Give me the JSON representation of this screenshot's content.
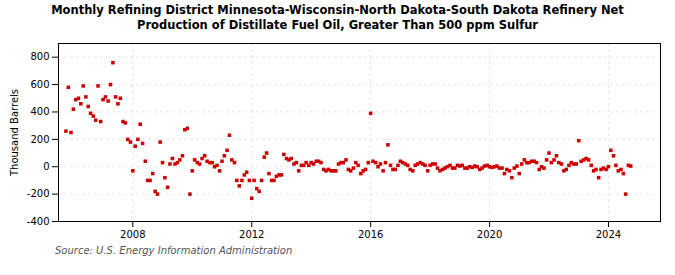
{
  "chart_data": {
    "type": "scatter",
    "title": "Monthly Refining District Minnesota-Wisconsin-North Dakota-South Dakota Refinery Net\nProduction of Distillate Fuel Oil, Greater Than 500 ppm Sulfur",
    "ylabel": "Thousand Barrels",
    "source": "Source: U.S. Energy Information Administration",
    "color": "#cc0000",
    "marker": "square",
    "grid": true,
    "xlim": [
      2005.5,
      2025.75
    ],
    "xticks": [
      2008,
      2012,
      2016,
      2020,
      2024
    ],
    "ylim": [
      -400,
      900
    ],
    "yticks": [
      -400,
      -200,
      0,
      200,
      400,
      600,
      800
    ],
    "x": [
      2005.75,
      2005.83,
      2005.92,
      2006.0,
      2006.08,
      2006.17,
      2006.25,
      2006.33,
      2006.42,
      2006.5,
      2006.58,
      2006.67,
      2006.75,
      2006.83,
      2006.92,
      2007.0,
      2007.08,
      2007.17,
      2007.25,
      2007.33,
      2007.42,
      2007.5,
      2007.58,
      2007.67,
      2007.75,
      2007.83,
      2007.92,
      2008.0,
      2008.08,
      2008.17,
      2008.25,
      2008.33,
      2008.42,
      2008.5,
      2008.58,
      2008.67,
      2008.75,
      2008.83,
      2008.92,
      2009.0,
      2009.08,
      2009.17,
      2009.25,
      2009.33,
      2009.42,
      2009.5,
      2009.58,
      2009.67,
      2009.75,
      2009.83,
      2009.92,
      2010.0,
      2010.08,
      2010.17,
      2010.25,
      2010.33,
      2010.42,
      2010.5,
      2010.58,
      2010.67,
      2010.75,
      2010.83,
      2010.92,
      2011.0,
      2011.08,
      2011.17,
      2011.25,
      2011.33,
      2011.42,
      2011.5,
      2011.58,
      2011.67,
      2011.75,
      2011.83,
      2011.92,
      2012.0,
      2012.08,
      2012.17,
      2012.25,
      2012.33,
      2012.42,
      2012.5,
      2012.58,
      2012.67,
      2012.75,
      2012.83,
      2012.92,
      2013.0,
      2013.08,
      2013.17,
      2013.25,
      2013.33,
      2013.42,
      2013.5,
      2013.58,
      2013.67,
      2013.75,
      2013.83,
      2013.92,
      2014.0,
      2014.08,
      2014.17,
      2014.25,
      2014.33,
      2014.42,
      2014.5,
      2014.58,
      2014.67,
      2014.75,
      2014.83,
      2014.92,
      2015.0,
      2015.08,
      2015.17,
      2015.25,
      2015.33,
      2015.42,
      2015.5,
      2015.58,
      2015.67,
      2015.75,
      2015.83,
      2015.92,
      2016.0,
      2016.08,
      2016.17,
      2016.25,
      2016.33,
      2016.42,
      2016.5,
      2016.58,
      2016.67,
      2016.75,
      2016.83,
      2016.92,
      2017.0,
      2017.08,
      2017.17,
      2017.25,
      2017.33,
      2017.42,
      2017.5,
      2017.58,
      2017.67,
      2017.75,
      2017.83,
      2017.92,
      2018.0,
      2018.08,
      2018.17,
      2018.25,
      2018.33,
      2018.42,
      2018.5,
      2018.58,
      2018.67,
      2018.75,
      2018.83,
      2018.92,
      2019.0,
      2019.08,
      2019.17,
      2019.25,
      2019.33,
      2019.42,
      2019.5,
      2019.58,
      2019.67,
      2019.75,
      2019.83,
      2019.92,
      2020.0,
      2020.08,
      2020.17,
      2020.25,
      2020.33,
      2020.42,
      2020.5,
      2020.58,
      2020.67,
      2020.75,
      2020.83,
      2020.92,
      2021.0,
      2021.08,
      2021.17,
      2021.25,
      2021.33,
      2021.42,
      2021.5,
      2021.58,
      2021.67,
      2021.75,
      2021.83,
      2021.92,
      2022.0,
      2022.08,
      2022.17,
      2022.25,
      2022.33,
      2022.42,
      2022.5,
      2022.58,
      2022.67,
      2022.75,
      2022.83,
      2022.92,
      2023.0,
      2023.08,
      2023.17,
      2023.25,
      2023.33,
      2023.42,
      2023.5,
      2023.58,
      2023.67,
      2023.75,
      2023.83,
      2023.92,
      2024.0,
      2024.08,
      2024.17,
      2024.25,
      2024.33,
      2024.42,
      2024.5,
      2024.58,
      2024.67,
      2024.75
    ],
    "values": [
      260,
      580,
      250,
      420,
      490,
      500,
      460,
      590,
      510,
      440,
      390,
      370,
      340,
      590,
      330,
      490,
      510,
      480,
      600,
      760,
      510,
      460,
      500,
      330,
      320,
      200,
      180,
      -30,
      150,
      200,
      310,
      170,
      40,
      -100,
      -100,
      -50,
      -180,
      -200,
      180,
      30,
      -80,
      -150,
      20,
      60,
      20,
      30,
      50,
      80,
      270,
      280,
      -200,
      -30,
      50,
      30,
      20,
      60,
      80,
      40,
      30,
      30,
      0,
      10,
      -30,
      40,
      80,
      120,
      230,
      50,
      30,
      -100,
      -140,
      -100,
      -60,
      -40,
      -100,
      -230,
      -100,
      -160,
      -180,
      -100,
      70,
      100,
      -50,
      -100,
      -100,
      -70,
      -60,
      -60,
      90,
      60,
      50,
      60,
      20,
      30,
      -30,
      10,
      10,
      30,
      10,
      30,
      20,
      40,
      40,
      30,
      -20,
      -30,
      -20,
      -30,
      -30,
      -30,
      20,
      30,
      30,
      50,
      -20,
      -30,
      -10,
      30,
      10,
      -50,
      -30,
      -20,
      30,
      390,
      40,
      30,
      0,
      20,
      -30,
      30,
      160,
      10,
      -20,
      -20,
      10,
      40,
      30,
      20,
      10,
      -20,
      -30,
      10,
      20,
      30,
      20,
      10,
      -30,
      10,
      20,
      20,
      -10,
      -30,
      -20,
      -10,
      0,
      10,
      -10,
      -10,
      10,
      5,
      10,
      -10,
      -10,
      0,
      -5,
      5,
      0,
      -20,
      -10,
      5,
      10,
      0,
      -5,
      0,
      5,
      -10,
      -10,
      -50,
      -20,
      -30,
      -80,
      -10,
      5,
      -50,
      20,
      50,
      30,
      30,
      40,
      40,
      30,
      -20,
      0,
      -10,
      50,
      100,
      30,
      50,
      80,
      30,
      20,
      -30,
      -20,
      10,
      30,
      20,
      20,
      190,
      40,
      50,
      60,
      50,
      10,
      -30,
      -20,
      -80,
      -20,
      -10,
      -20,
      0,
      120,
      80,
      10,
      -30,
      -20,
      -50,
      -200,
      10,
      5
    ]
  }
}
